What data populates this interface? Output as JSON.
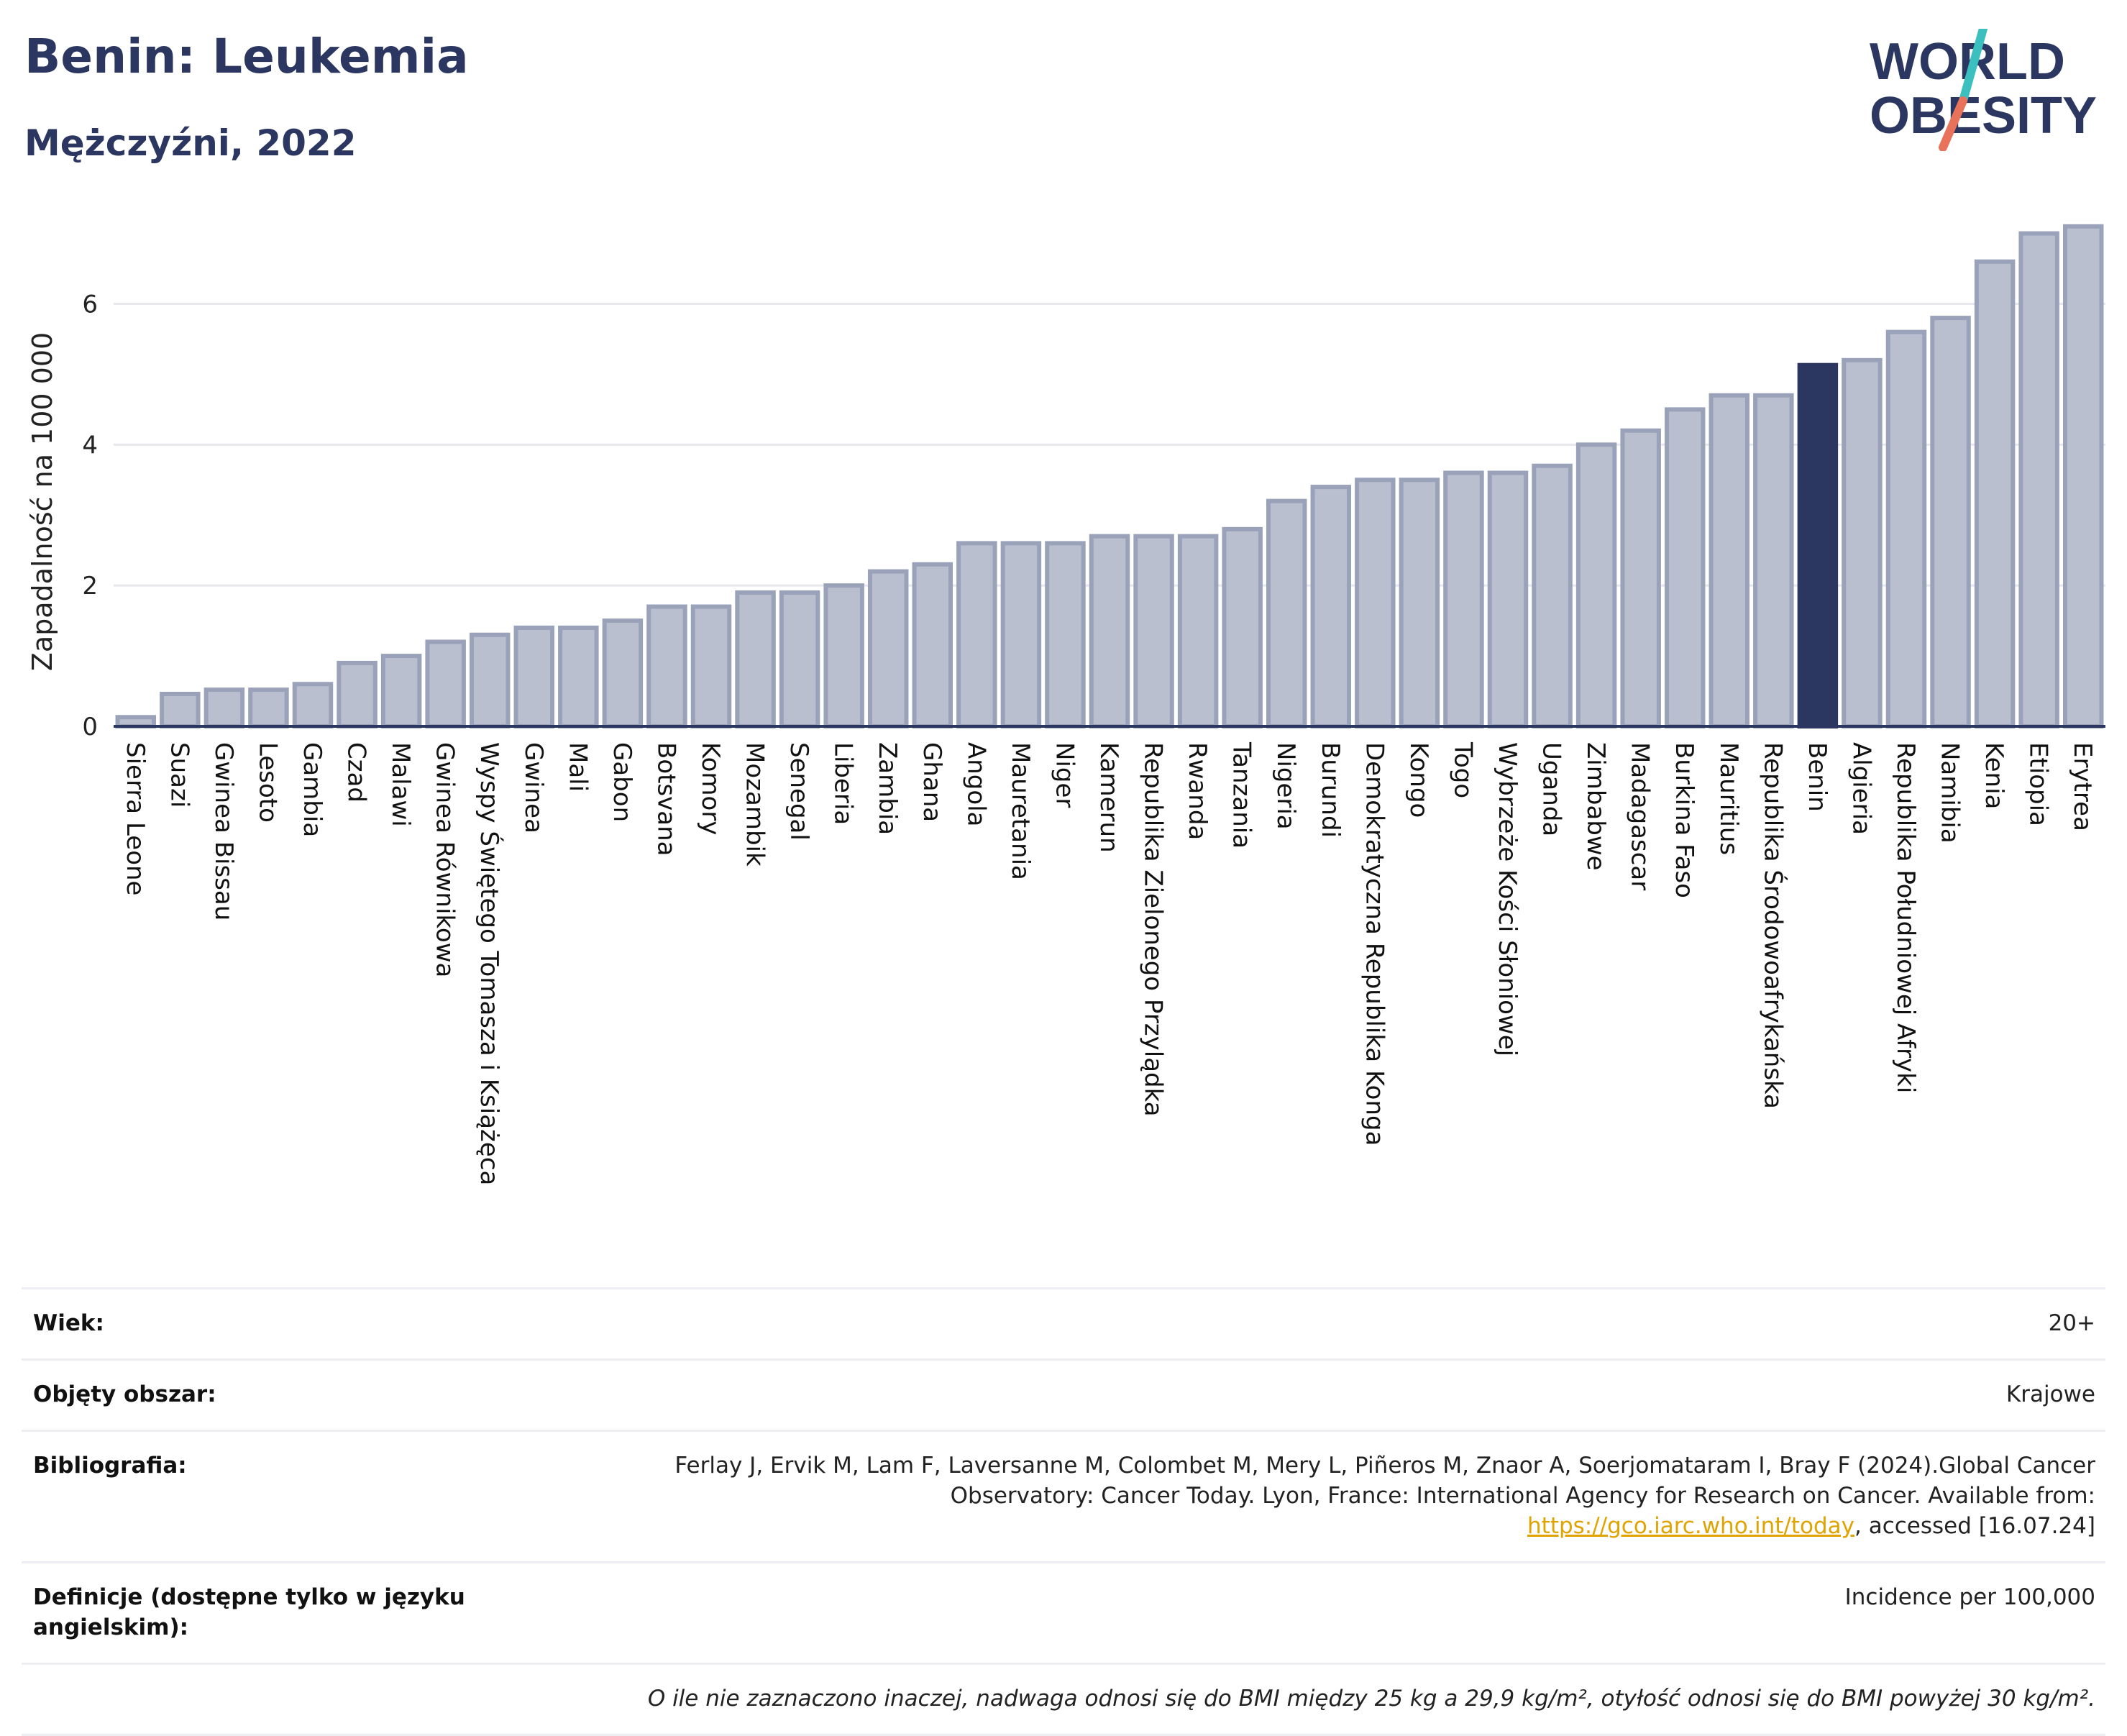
{
  "header": {
    "title": "Benin: Leukemia",
    "subtitle": "Mężczyźni, 2022"
  },
  "logo": {
    "line1": "WORLD",
    "line2": "OBESITY",
    "accent_teal": "#3bbfbf",
    "accent_coral": "#e8735a",
    "text_color": "#2b3760"
  },
  "chart_data": {
    "type": "bar",
    "ylabel": "Zapadalność na 100 000",
    "ylim": [
      0,
      7.2
    ],
    "yticks": [
      0,
      2,
      4,
      6
    ],
    "grid": true,
    "highlight": "Benin",
    "colors": {
      "bar": "#b9bfcf",
      "bar_edge": "#9aa2ba",
      "highlight": "#2b3760"
    },
    "categories": [
      "Sierra Leone",
      "Suazi",
      "Gwinea Bissau",
      "Lesoto",
      "Gambia",
      "Czad",
      "Malawi",
      "Gwinea Równikowa",
      "Wyspy Świętego Tomasza i Książęca",
      "Gwinea",
      "Mali",
      "Gabon",
      "Botsvana",
      "Komory",
      "Mozambik",
      "Senegal",
      "Liberia",
      "Zambia",
      "Ghana",
      "Angola",
      "Mauretania",
      "Niger",
      "Kamerun",
      "Republika Zielonego Przylądka",
      "Rwanda",
      "Tanzania",
      "Nigeria",
      "Burundi",
      "Demokratyczna Republika Konga",
      "Kongo",
      "Togo",
      "Wybrzeże Kości Słoniowej",
      "Uganda",
      "Zimbabwe",
      "Madagascar",
      "Burkina Faso",
      "Mauritius",
      "Republika Środowoafrykańska",
      "Benin",
      "Algieria",
      "Republika Południowej Afryki",
      "Namibia",
      "Kenia",
      "Etiopia",
      "Erytrea"
    ],
    "values": [
      0.13,
      0.46,
      0.52,
      0.52,
      0.6,
      0.9,
      1.0,
      1.2,
      1.3,
      1.4,
      1.4,
      1.5,
      1.7,
      1.7,
      1.9,
      1.9,
      2.0,
      2.2,
      2.3,
      2.6,
      2.6,
      2.6,
      2.7,
      2.7,
      2.7,
      2.8,
      3.2,
      3.4,
      3.5,
      3.5,
      3.6,
      3.6,
      3.7,
      4.0,
      4.2,
      4.5,
      4.7,
      4.7,
      5.13,
      5.2,
      5.6,
      5.8,
      6.6,
      7.0,
      7.1
    ]
  },
  "meta": {
    "age_label": "Wiek:",
    "age_value": "20+",
    "area_label": "Objęty obszar:",
    "area_value": "Krajowe",
    "bib_label": "Bibliografia:",
    "bib_text": "Ferlay J, Ervik M, Lam F, Laversanne M, Colombet M, Mery L, Piñeros M, Znaor A, Soerjomataram I, Bray F (2024).Global Cancer Observatory: Cancer Today. Lyon, France: International Agency for Research on Cancer. Available from: ",
    "bib_link": "https://gco.iarc.who.int/today",
    "bib_tail": ", accessed [16.07.24]",
    "def_label": "Definicje (dostępne tylko w języku angielskim):",
    "def_value": "Incidence per 100,000",
    "note": "O ile nie zaznaczono inaczej, nadwaga odnosi się do BMI między 25 kg a 29,9 kg/m², otyłość odnosi się do BMI powyżej 30 kg/m²."
  }
}
